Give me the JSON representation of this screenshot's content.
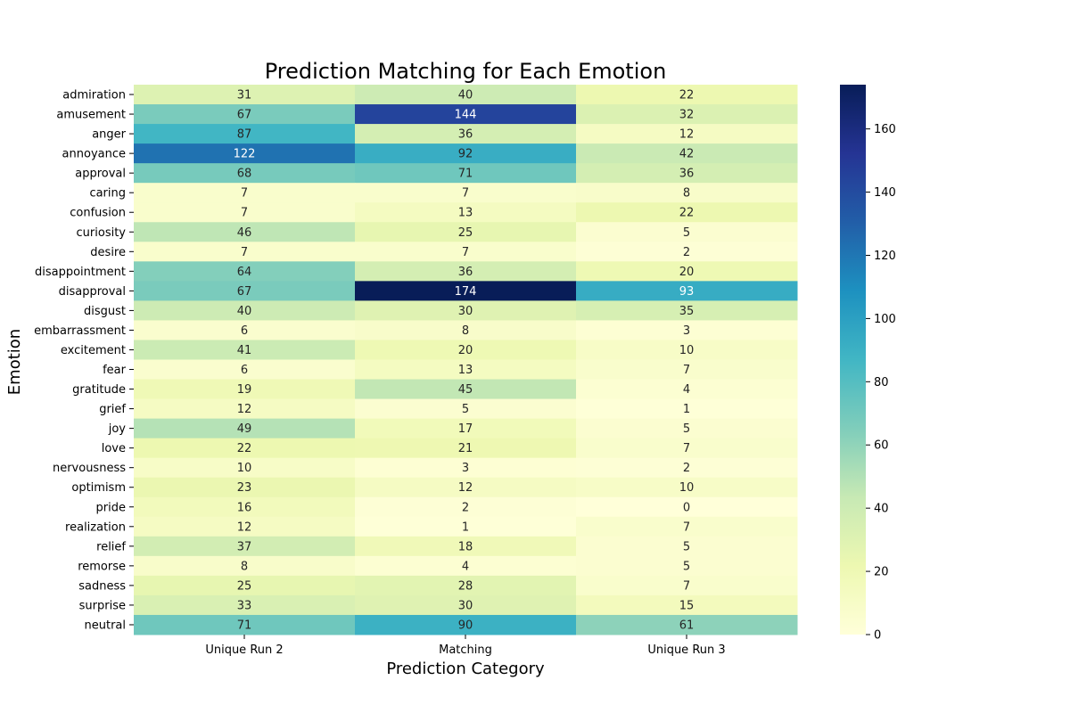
{
  "chart_data": {
    "type": "heatmap",
    "title": "Prediction Matching for Each Emotion",
    "xlabel": "Prediction Category",
    "ylabel": "Emotion",
    "columns": [
      "Unique Run 2",
      "Matching",
      "Unique Run 3"
    ],
    "rows": [
      "admiration",
      "amusement",
      "anger",
      "annoyance",
      "approval",
      "caring",
      "confusion",
      "curiosity",
      "desire",
      "disappointment",
      "disapproval",
      "disgust",
      "embarrassment",
      "excitement",
      "fear",
      "gratitude",
      "grief",
      "joy",
      "love",
      "nervousness",
      "optimism",
      "pride",
      "realization",
      "relief",
      "remorse",
      "sadness",
      "surprise",
      "neutral"
    ],
    "values": [
      [
        31,
        40,
        22
      ],
      [
        67,
        144,
        32
      ],
      [
        87,
        36,
        12
      ],
      [
        122,
        92,
        42
      ],
      [
        68,
        71,
        36
      ],
      [
        7,
        7,
        8
      ],
      [
        7,
        13,
        22
      ],
      [
        46,
        25,
        5
      ],
      [
        7,
        7,
        2
      ],
      [
        64,
        36,
        20
      ],
      [
        67,
        174,
        93
      ],
      [
        40,
        30,
        35
      ],
      [
        6,
        8,
        3
      ],
      [
        41,
        20,
        10
      ],
      [
        6,
        13,
        7
      ],
      [
        19,
        45,
        4
      ],
      [
        12,
        5,
        1
      ],
      [
        49,
        17,
        5
      ],
      [
        22,
        21,
        7
      ],
      [
        10,
        3,
        2
      ],
      [
        23,
        12,
        10
      ],
      [
        16,
        2,
        0
      ],
      [
        12,
        1,
        7
      ],
      [
        37,
        18,
        5
      ],
      [
        8,
        4,
        5
      ],
      [
        25,
        28,
        7
      ],
      [
        33,
        30,
        15
      ],
      [
        71,
        90,
        61
      ]
    ],
    "colorbar": {
      "range": [
        0,
        174
      ],
      "ticks": [
        0,
        20,
        40,
        60,
        80,
        100,
        120,
        140,
        160
      ]
    },
    "colormap": "YlGnBu",
    "colormap_stops": [
      "#ffffd9",
      "#edf8b1",
      "#c7e9b4",
      "#7fcdbb",
      "#41b6c4",
      "#1d91c0",
      "#225ea8",
      "#253494",
      "#081d58"
    ],
    "annotations": "cell values shown"
  }
}
